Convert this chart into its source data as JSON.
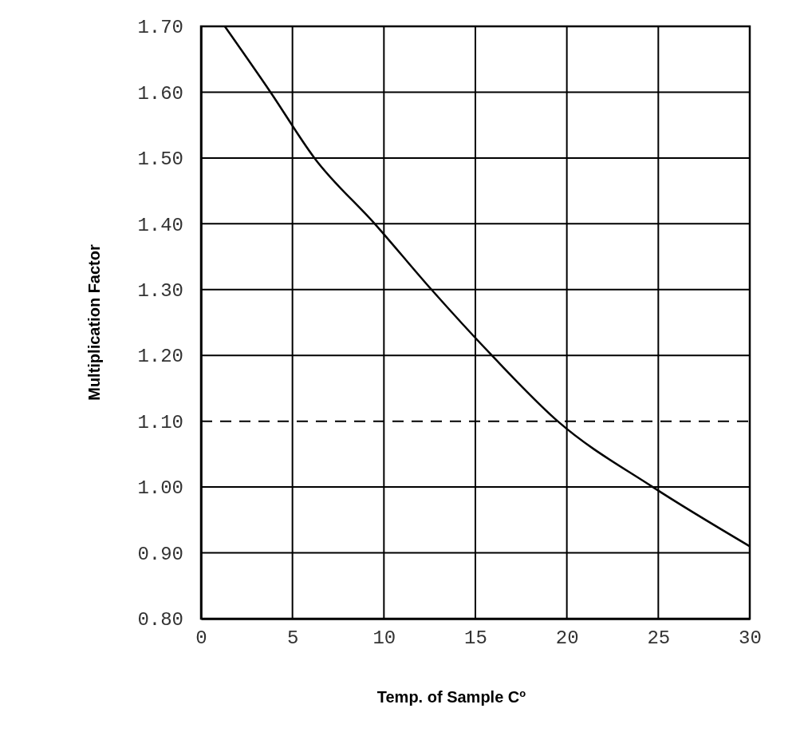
{
  "chart_data": {
    "type": "line",
    "xlabel": "Temp. of Sample C$^{o}$",
    "ylabel": "Multiplication Factor",
    "series": [
      {
        "color": "#000000",
        "x": [
          1.3,
          3.8,
          6.2,
          9.5,
          12.6,
          15.9,
          19.5,
          24.7,
          30
        ],
        "values": [
          1.7,
          1.6,
          1.5,
          1.4,
          1.3,
          1.2,
          1.1,
          1.0,
          0.91
        ]
      }
    ],
    "xlim": [
      0,
      30
    ],
    "xticks": [
      0,
      5,
      10,
      15,
      20,
      25,
      30
    ],
    "ylim": [
      0.8,
      1.7
    ],
    "yticks": [
      {
        "value": 0.8,
        "label": "0.80"
      },
      {
        "value": 0.9,
        "label": "0.90"
      },
      {
        "value": 1.0,
        "label": "1.00"
      },
      {
        "value": 1.1,
        "label": "1.10"
      },
      {
        "value": 1.2,
        "label": "1.20"
      },
      {
        "value": 1.3,
        "label": "1.30"
      },
      {
        "value": 1.4,
        "label": "1.40"
      },
      {
        "value": 1.5,
        "label": "1.50"
      },
      {
        "value": 1.6,
        "label": "1.60"
      },
      {
        "value": 1.7,
        "label": "1.70"
      }
    ],
    "ref_lines": [
      {
        "axis": "y",
        "value": 1.1,
        "line_style": "dashed",
        "color": "#000000"
      }
    ],
    "grid": true,
    "marker": "none",
    "line_style": "solid"
  }
}
